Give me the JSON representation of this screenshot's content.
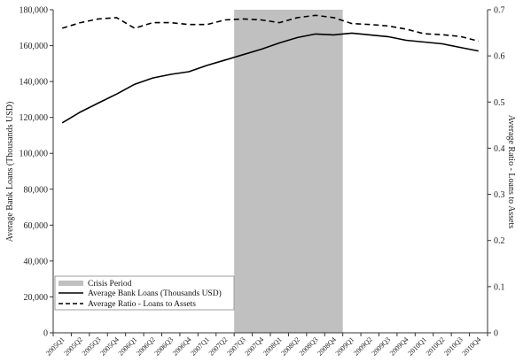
{
  "chart_data": {
    "type": "line",
    "categories": [
      "2005Q1",
      "2005Q2",
      "2005Q3",
      "2005Q4",
      "2006Q1",
      "2006Q2",
      "2006Q3",
      "2006Q4",
      "2007Q1",
      "2007Q2",
      "2007Q3",
      "2007Q4",
      "2008Q1",
      "2008Q2",
      "2008Q3",
      "2008Q4",
      "2009Q1",
      "2009Q2",
      "2009Q3",
      "2009Q4",
      "2010Q1",
      "2010Q2",
      "2010Q3",
      "2010Q4"
    ],
    "ylabel": "Average Bank Loans (Thousands USD)",
    "y2label": "Average Ratio - Loans to Assets",
    "ylim": [
      0,
      180000
    ],
    "y2lim": [
      0,
      0.7
    ],
    "yticks": [
      "0",
      "20,000",
      "40,000",
      "60,000",
      "80,000",
      "100,000",
      "120,000",
      "140,000",
      "160,000",
      "180,000"
    ],
    "y2ticks": [
      "0",
      "0.1",
      "0.2",
      "0.3",
      "0.4",
      "0.5",
      "0.6",
      "0.7"
    ],
    "grid": false,
    "legend_position": "bottom-left",
    "shaded_region": {
      "name": "Crisis Period",
      "from": "2007Q3",
      "to": "2008Q4",
      "color": "#c0c0c0"
    },
    "series": [
      {
        "name": "Average Bank Loans (Thousands USD)",
        "axis": "left",
        "style": "solid",
        "color": "#000000",
        "values": [
          117000,
          123000,
          128000,
          133000,
          138500,
          142000,
          144000,
          145500,
          149000,
          152000,
          155000,
          158000,
          161500,
          164500,
          166500,
          166000,
          167000,
          166000,
          165000,
          163000,
          162000,
          161000,
          159000,
          157000
        ]
      },
      {
        "name": "Average Ratio - Loans to Assets",
        "axis": "right",
        "style": "dashed",
        "color": "#000000",
        "values": [
          0.66,
          0.672,
          0.68,
          0.683,
          0.66,
          0.672,
          0.672,
          0.668,
          0.668,
          0.678,
          0.68,
          0.678,
          0.672,
          0.683,
          0.688,
          0.683,
          0.67,
          0.668,
          0.665,
          0.658,
          0.648,
          0.646,
          0.642,
          0.632
        ]
      }
    ]
  }
}
